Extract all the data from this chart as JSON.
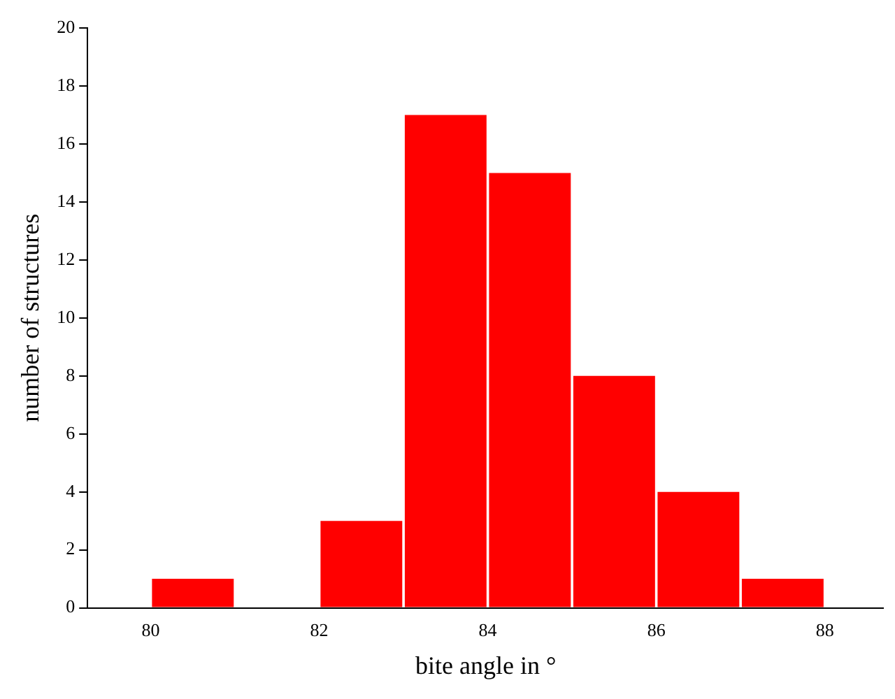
{
  "chart_data": {
    "type": "histogram",
    "xlabel": "bite angle in °",
    "ylabel": "number of structures",
    "bins": [
      80,
      81,
      82,
      83,
      84,
      85,
      86,
      87,
      88
    ],
    "values": [
      1,
      0,
      3,
      17,
      15,
      8,
      4,
      1
    ],
    "color": "#ff0000",
    "xlim": [
      79.25,
      88.7
    ],
    "xticks": [
      80,
      82,
      84,
      86,
      88
    ],
    "ylim": [
      0,
      20
    ],
    "yticks": [
      0,
      2,
      4,
      6,
      8,
      10,
      12,
      14,
      16,
      18,
      20
    ],
    "grid": false,
    "legend": false
  }
}
